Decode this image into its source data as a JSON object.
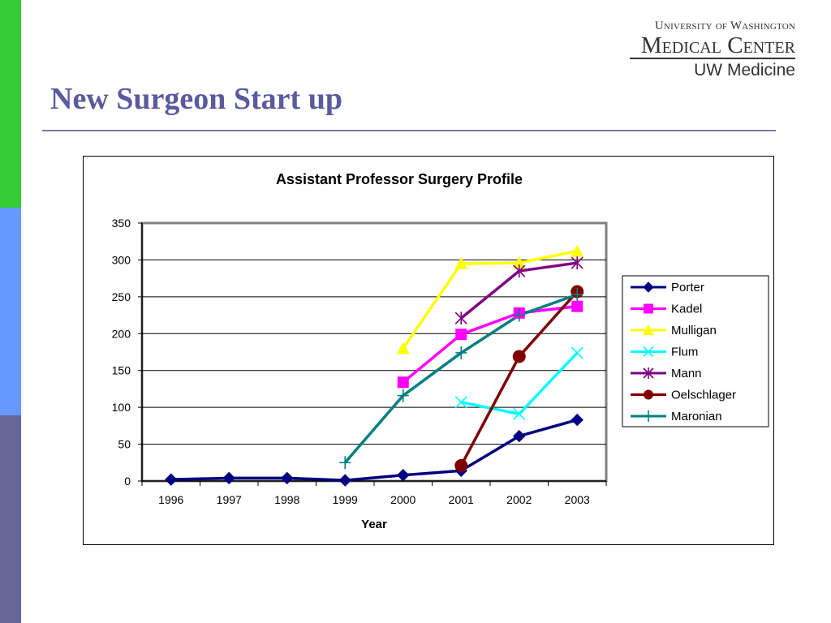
{
  "slide": {
    "title": "New Surgeon Start up",
    "colors": {
      "accent_green": "#33cc33",
      "accent_blue": "#6699ff",
      "accent_purple": "#666699",
      "title": "#5a5a9e"
    }
  },
  "logo": {
    "line1": "University of Washington",
    "line2": "Medical Center",
    "line3": "UW Medicine"
  },
  "chart_data": {
    "type": "line",
    "title": "Assistant Professor Surgery Profile",
    "xlabel": "Year",
    "ylabel": "",
    "ylim": [
      0,
      350
    ],
    "yticks": [
      0,
      50,
      100,
      150,
      200,
      250,
      300,
      350
    ],
    "categories": [
      "1996",
      "1997",
      "1998",
      "1999",
      "2000",
      "2001",
      "2002",
      "2003"
    ],
    "grid": true,
    "legend_position": "right",
    "series": [
      {
        "name": "Porter",
        "color": "#000080",
        "marker": "diamond",
        "values": [
          2,
          4,
          4,
          1,
          8,
          14,
          61,
          83
        ]
      },
      {
        "name": "Kadel",
        "color": "#ff00ff",
        "marker": "square",
        "values": [
          null,
          null,
          null,
          null,
          134,
          199,
          228,
          237
        ]
      },
      {
        "name": "Mulligan",
        "color": "#ffff00",
        "marker": "triangle",
        "values": [
          null,
          null,
          null,
          null,
          180,
          295,
          296,
          312
        ]
      },
      {
        "name": "Flum",
        "color": "#00ffff",
        "marker": "x",
        "values": [
          null,
          null,
          null,
          null,
          null,
          107,
          91,
          174
        ]
      },
      {
        "name": "Mann",
        "color": "#800080",
        "marker": "star",
        "values": [
          null,
          null,
          null,
          null,
          null,
          221,
          285,
          296
        ]
      },
      {
        "name": "Oelschlager",
        "color": "#800000",
        "marker": "circle",
        "values": [
          null,
          null,
          null,
          null,
          null,
          21,
          169,
          257
        ]
      },
      {
        "name": "Maronian",
        "color": "#008080",
        "marker": "plus",
        "values": [
          null,
          null,
          null,
          25,
          116,
          174,
          225,
          253
        ]
      }
    ]
  }
}
